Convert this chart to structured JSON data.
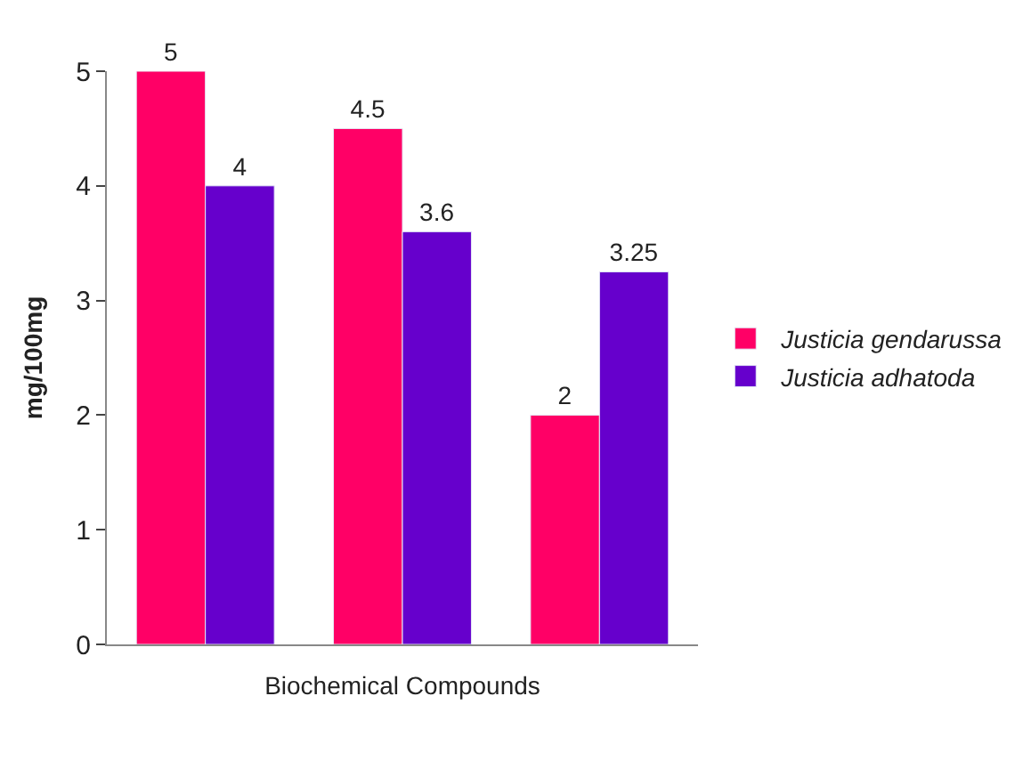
{
  "chart_data": {
    "type": "bar",
    "xlabel": "Biochemical Compounds",
    "ylabel": "mg/100mg",
    "categories": [
      null,
      null,
      null
    ],
    "series": [
      {
        "name": "Justicia gendarussa",
        "color": "#ff0066",
        "values": [
          5,
          4.5,
          2
        ]
      },
      {
        "name": "Justicia adhatoda",
        "color": "#6600cc",
        "values": [
          4,
          3.6,
          3.25
        ]
      }
    ],
    "ylim": [
      0,
      5
    ],
    "yticks": [
      0,
      1,
      2,
      3,
      4,
      5
    ],
    "data_labels": true,
    "legend": "right",
    "grid": false
  }
}
